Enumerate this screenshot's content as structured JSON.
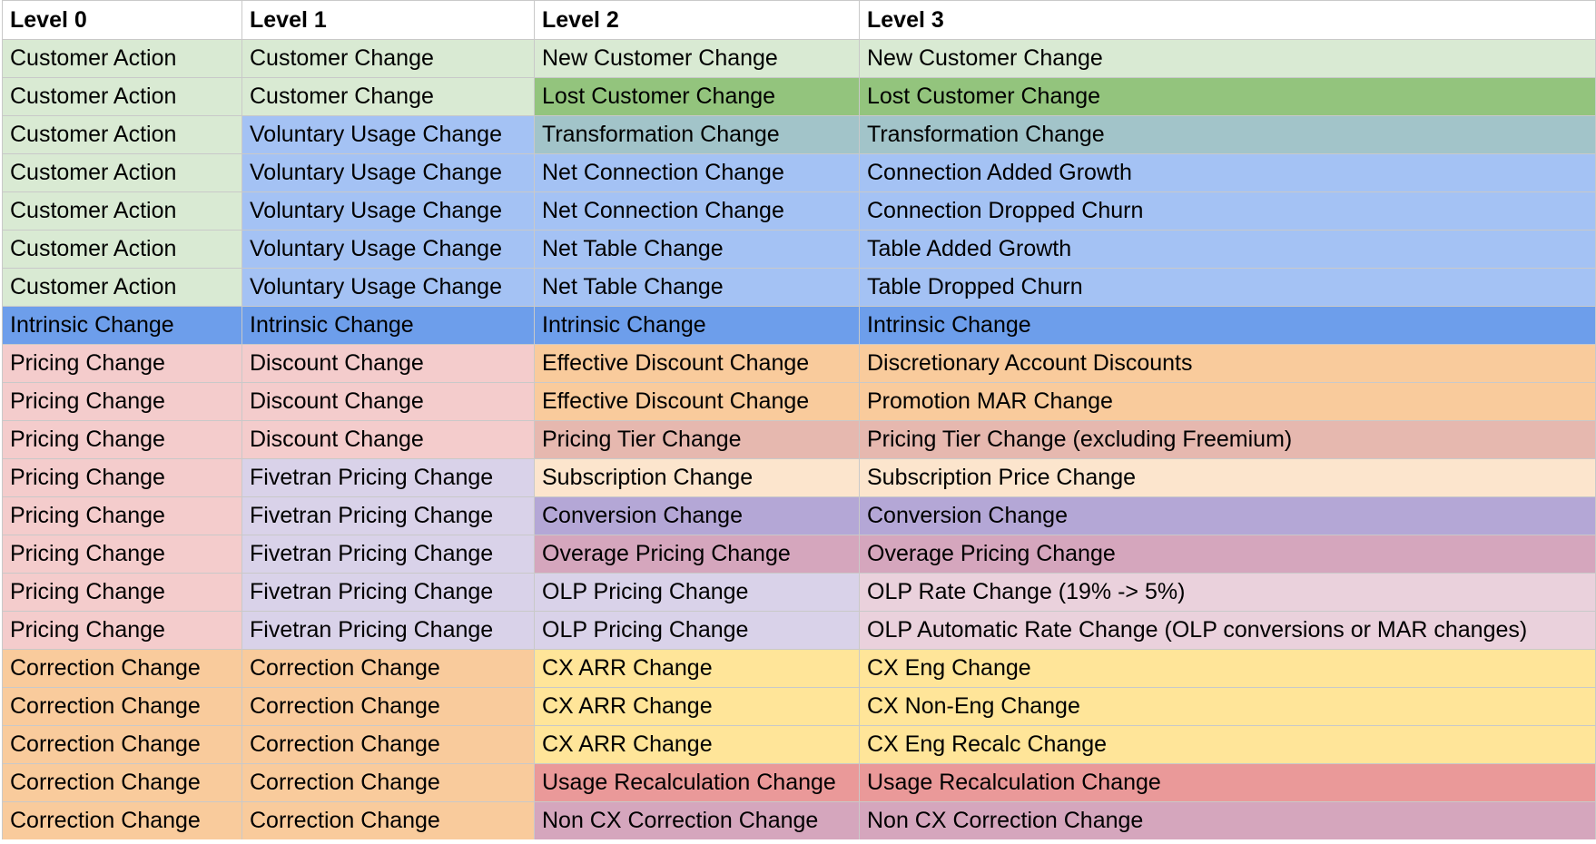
{
  "sheet": {
    "headers": [
      "Level 0",
      "Level 1",
      "Level 2",
      "Level 3"
    ],
    "column_widths": [
      264,
      322,
      358,
      811
    ],
    "rows": [
      [
        [
          "Customer Action",
          "#d9ead3"
        ],
        [
          "Customer Change",
          "#d9ead3"
        ],
        [
          "New Customer Change",
          "#d9ead3"
        ],
        [
          "New Customer Change",
          "#d9ead3"
        ]
      ],
      [
        [
          "Customer Action",
          "#d9ead3"
        ],
        [
          "Customer Change",
          "#d9ead3"
        ],
        [
          "Lost Customer Change",
          "#93c47d"
        ],
        [
          "Lost Customer Change",
          "#93c47d"
        ]
      ],
      [
        [
          "Customer Action",
          "#d9ead3"
        ],
        [
          "Voluntary Usage Change",
          "#a4c2f4"
        ],
        [
          "Transformation Change",
          "#a2c4c9"
        ],
        [
          "Transformation Change",
          "#a2c4c9"
        ]
      ],
      [
        [
          "Customer Action",
          "#d9ead3"
        ],
        [
          "Voluntary Usage Change",
          "#a4c2f4"
        ],
        [
          "Net Connection Change",
          "#a4c2f4"
        ],
        [
          "Connection Added Growth",
          "#a4c2f4"
        ]
      ],
      [
        [
          "Customer Action",
          "#d9ead3"
        ],
        [
          "Voluntary Usage Change",
          "#a4c2f4"
        ],
        [
          "Net Connection Change",
          "#a4c2f4"
        ],
        [
          "Connection Dropped Churn",
          "#a4c2f4"
        ]
      ],
      [
        [
          "Customer Action",
          "#d9ead3"
        ],
        [
          "Voluntary Usage Change",
          "#a4c2f4"
        ],
        [
          "Net Table Change",
          "#a4c2f4"
        ],
        [
          "Table Added Growth",
          "#a4c2f4"
        ]
      ],
      [
        [
          "Customer Action",
          "#d9ead3"
        ],
        [
          "Voluntary Usage Change",
          "#a4c2f4"
        ],
        [
          "Net Table Change",
          "#a4c2f4"
        ],
        [
          "Table Dropped Churn",
          "#a4c2f4"
        ]
      ],
      [
        [
          "Intrinsic Change",
          "#6d9eeb"
        ],
        [
          "Intrinsic Change",
          "#6d9eeb"
        ],
        [
          "Intrinsic Change",
          "#6d9eeb"
        ],
        [
          "Intrinsic Change",
          "#6d9eeb"
        ]
      ],
      [
        [
          "Pricing Change",
          "#f4cccc"
        ],
        [
          "Discount Change",
          "#f4cccc"
        ],
        [
          "Effective Discount Change",
          "#f9cb9c"
        ],
        [
          "Discretionary Account Discounts",
          "#f9cb9c"
        ]
      ],
      [
        [
          "Pricing Change",
          "#f4cccc"
        ],
        [
          "Discount Change",
          "#f4cccc"
        ],
        [
          "Effective Discount Change",
          "#f9cb9c"
        ],
        [
          "Promotion MAR Change",
          "#f9cb9c"
        ]
      ],
      [
        [
          "Pricing Change",
          "#f4cccc"
        ],
        [
          "Discount Change",
          "#f4cccc"
        ],
        [
          "Pricing Tier Change",
          "#e6b8af"
        ],
        [
          "Pricing Tier Change (excluding Freemium)",
          "#e6b8af"
        ]
      ],
      [
        [
          "Pricing Change",
          "#f4cccc"
        ],
        [
          "Fivetran Pricing Change",
          "#d9d2e9"
        ],
        [
          "Subscription Change",
          "#fce5cd"
        ],
        [
          "Subscription Price Change",
          "#fce5cd"
        ]
      ],
      [
        [
          "Pricing Change",
          "#f4cccc"
        ],
        [
          "Fivetran Pricing Change",
          "#d9d2e9"
        ],
        [
          "Conversion Change",
          "#b4a7d6"
        ],
        [
          "Conversion Change",
          "#b4a7d6"
        ]
      ],
      [
        [
          "Pricing Change",
          "#f4cccc"
        ],
        [
          "Fivetran Pricing Change",
          "#d9d2e9"
        ],
        [
          "Overage Pricing Change",
          "#d5a6bd"
        ],
        [
          "Overage Pricing Change",
          "#d5a6bd"
        ]
      ],
      [
        [
          "Pricing Change",
          "#f4cccc"
        ],
        [
          "Fivetran Pricing Change",
          "#d9d2e9"
        ],
        [
          "OLP Pricing Change",
          "#d9d2e9"
        ],
        [
          "OLP Rate Change (19% -> 5%)",
          "#ead1dc"
        ]
      ],
      [
        [
          "Pricing Change",
          "#f4cccc"
        ],
        [
          "Fivetran Pricing Change",
          "#d9d2e9"
        ],
        [
          "OLP Pricing Change",
          "#d9d2e9"
        ],
        [
          "OLP Automatic Rate Change (OLP conversions or MAR changes)",
          "#ead1dc"
        ]
      ],
      [
        [
          "Correction Change",
          "#f9cb9c"
        ],
        [
          "Correction Change",
          "#f9cb9c"
        ],
        [
          "CX ARR Change",
          "#ffe599"
        ],
        [
          "CX Eng Change",
          "#ffe599"
        ]
      ],
      [
        [
          "Correction Change",
          "#f9cb9c"
        ],
        [
          "Correction Change",
          "#f9cb9c"
        ],
        [
          "CX ARR Change",
          "#ffe599"
        ],
        [
          "CX Non-Eng Change",
          "#ffe599"
        ]
      ],
      [
        [
          "Correction Change",
          "#f9cb9c"
        ],
        [
          "Correction Change",
          "#f9cb9c"
        ],
        [
          "CX ARR Change",
          "#ffe599"
        ],
        [
          "CX Eng Recalc Change",
          "#ffe599"
        ]
      ],
      [
        [
          "Correction Change",
          "#f9cb9c"
        ],
        [
          "Correction Change",
          "#f9cb9c"
        ],
        [
          "Usage Recalculation Change",
          "#ea9999"
        ],
        [
          "Usage Recalculation Change",
          "#ea9999"
        ]
      ],
      [
        [
          "Correction Change",
          "#f9cb9c"
        ],
        [
          "Correction Change",
          "#f9cb9c"
        ],
        [
          "Non CX Correction Change",
          "#d5a6bd"
        ],
        [
          "Non CX Correction Change",
          "#d5a6bd"
        ]
      ]
    ]
  }
}
